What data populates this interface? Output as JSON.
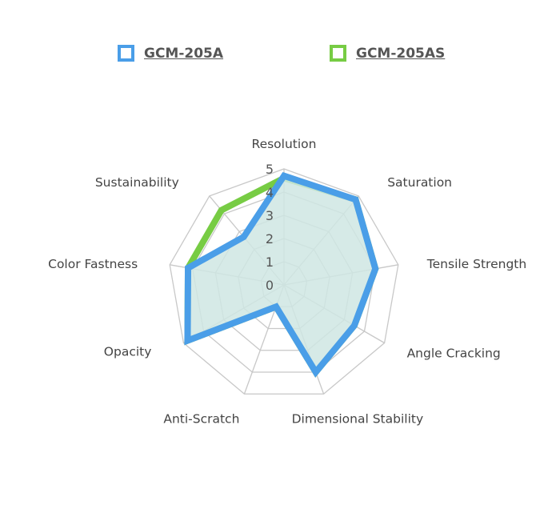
{
  "chart_data": {
    "type": "radar",
    "axes": [
      "Resolution",
      "Saturation",
      "Tensile Strength",
      "Angle Cracking",
      "Dimensional Stability",
      "Anti-Scratch",
      "Opacity",
      "Color Fastness",
      "Sustainability"
    ],
    "rlim": [
      0,
      5
    ],
    "ticks": [
      "0",
      "1",
      "2",
      "3",
      "4",
      "5"
    ],
    "grid": true,
    "legend_position": "top",
    "series": [
      {
        "name": "GCM-205AS",
        "color": "#77cc44",
        "values": [
          4.6,
          4.8,
          4.0,
          3.5,
          4.0,
          1.0,
          4.8,
          4.2,
          4.2
        ],
        "fill": false
      },
      {
        "name": "GCM-205A",
        "color": "#4a9ee8",
        "values": [
          4.7,
          4.8,
          4.0,
          3.5,
          4.0,
          1.0,
          4.8,
          4.2,
          2.7
        ],
        "fill": true
      }
    ]
  },
  "legend": [
    {
      "label": "GCM-205A",
      "color": "#4a9ee8"
    },
    {
      "label": "GCM-205AS",
      "color": "#77cc44"
    }
  ],
  "colors": {
    "grid": "#c8c8c8",
    "area_fill": "#cfe6e3"
  }
}
